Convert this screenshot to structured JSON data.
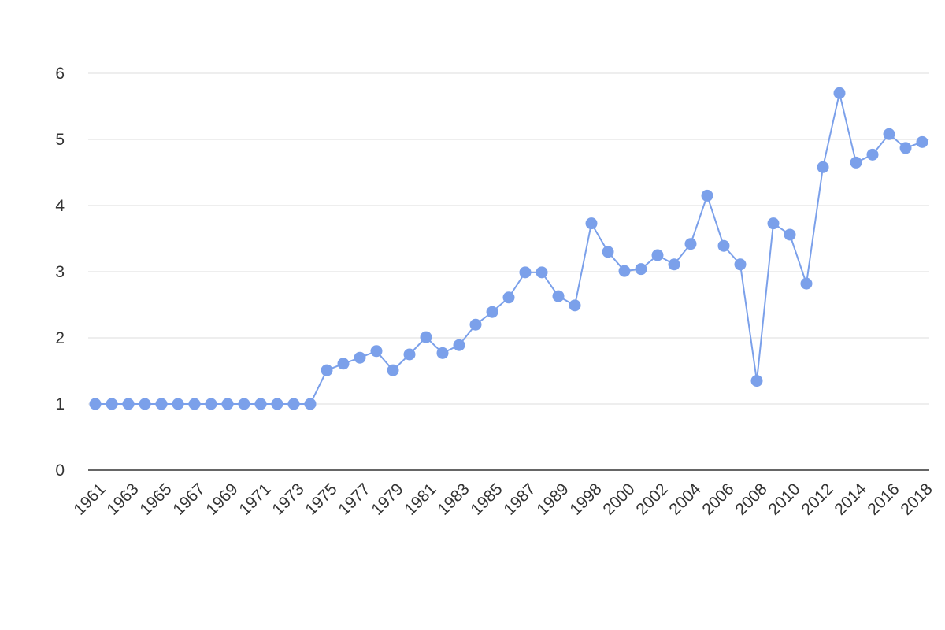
{
  "chart_data": {
    "type": "line",
    "categories": [
      "1961",
      null,
      "1963",
      null,
      "1965",
      null,
      "1967",
      null,
      "1969",
      null,
      "1971",
      null,
      "1973",
      null,
      "1975",
      null,
      "1977",
      null,
      "1979",
      null,
      "1981",
      null,
      "1983",
      null,
      "1985",
      null,
      "1987",
      null,
      "1989",
      null,
      "1998",
      null,
      "2000",
      null,
      "2002",
      null,
      "2004",
      null,
      "2006",
      null,
      "2008",
      null,
      "2010",
      null,
      "2012",
      null,
      "2014",
      null,
      "2016",
      null,
      "2018"
    ],
    "values": [
      1,
      1,
      1,
      1,
      1,
      1,
      1,
      1,
      1,
      1,
      1,
      1,
      1,
      1,
      1.51,
      1.61,
      1.7,
      1.8,
      1.51,
      1.75,
      2.01,
      1.77,
      1.89,
      2.2,
      2.39,
      2.61,
      2.99,
      2.99,
      2.63,
      2.49,
      3.73,
      3.3,
      3.01,
      3.04,
      3.25,
      3.11,
      3.42,
      4.15,
      3.39,
      3.11,
      1.35,
      3.73,
      3.56,
      2.82,
      4.58,
      5.7,
      4.65,
      4.77,
      5.08,
      4.87,
      4.96
    ],
    "color": "#7ba0ea",
    "ylim": [
      0,
      6
    ],
    "yticks": [
      0,
      1,
      2,
      3,
      4,
      5,
      6
    ],
    "grid": true
  }
}
